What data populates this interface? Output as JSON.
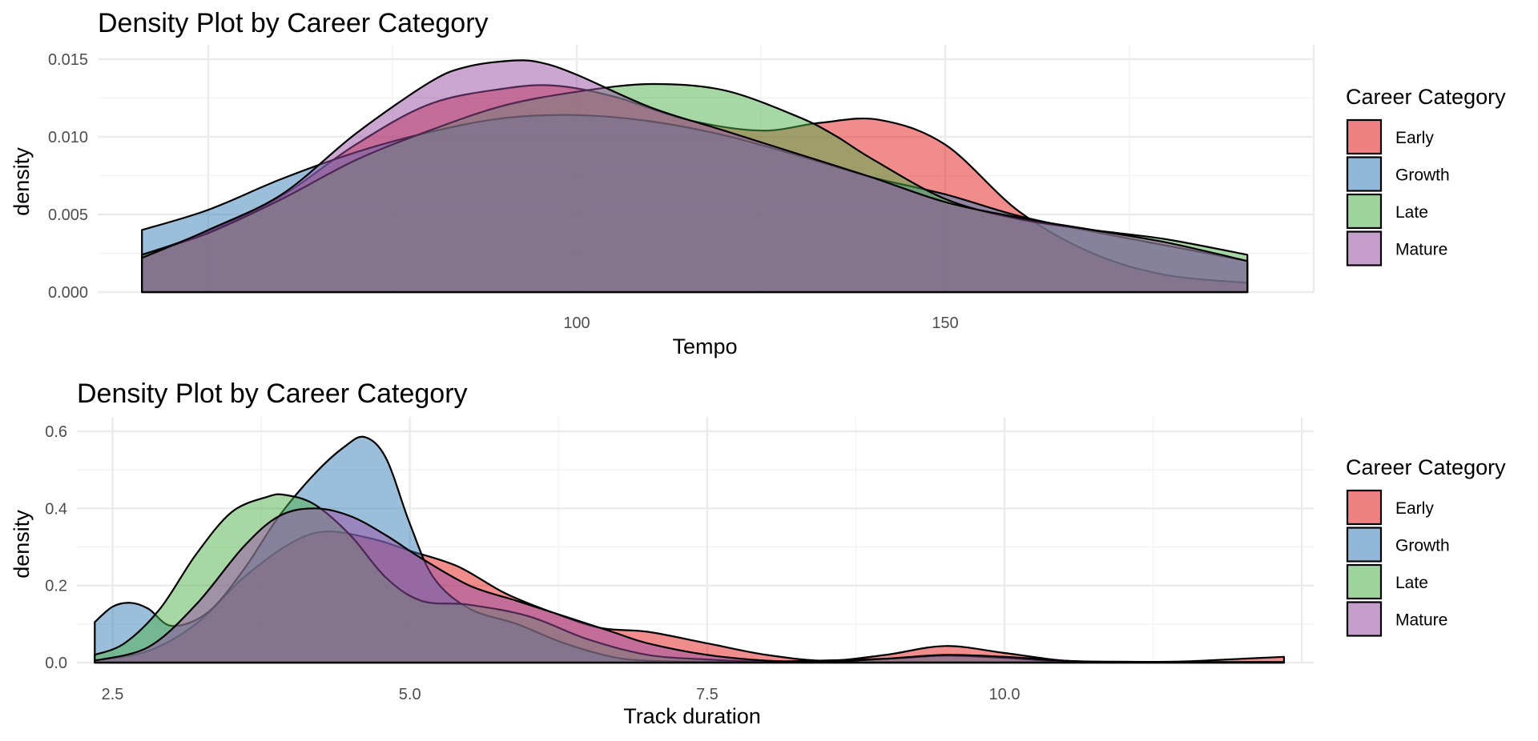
{
  "chart_data": [
    {
      "type": "area",
      "title": "Density Plot by Career Category",
      "xlabel": "Tempo",
      "ylabel": "density",
      "xlim": [
        35,
        200
      ],
      "ylim": [
        0,
        0.015
      ],
      "x_ticks": [
        100,
        150
      ],
      "x_tick_labels": [
        "100",
        "150"
      ],
      "y_ticks": [
        0,
        0.005,
        0.01,
        0.015
      ],
      "y_tick_labels": [
        "0.000",
        "0.005",
        "0.010",
        "0.015"
      ],
      "grid": true,
      "legend": {
        "title": "Career Category",
        "position": "right"
      },
      "series": [
        {
          "name": "Early",
          "color": "#E41A1C",
          "x": [
            41,
            50,
            60,
            70,
            80,
            90,
            97,
            105,
            115,
            125,
            133,
            141,
            150,
            160,
            170,
            180,
            191
          ],
          "y": [
            0.0024,
            0.0039,
            0.0062,
            0.0095,
            0.0121,
            0.0131,
            0.0133,
            0.0126,
            0.0111,
            0.0104,
            0.0109,
            0.0111,
            0.0095,
            0.0052,
            0.0025,
            0.0011,
            0.0006
          ]
        },
        {
          "name": "Growth",
          "color": "#377EB8",
          "x": [
            41,
            50,
            60,
            70,
            80,
            90,
            100,
            110,
            120,
            130,
            140,
            150,
            160,
            170,
            180,
            191
          ],
          "y": [
            0.004,
            0.0053,
            0.0073,
            0.009,
            0.0103,
            0.0112,
            0.0114,
            0.011,
            0.0101,
            0.0088,
            0.0074,
            0.0063,
            0.0049,
            0.0039,
            0.003,
            0.002
          ]
        },
        {
          "name": "Late",
          "color": "#4DAF4A",
          "x": [
            41,
            50,
            60,
            70,
            80,
            90,
            100,
            110,
            120,
            130,
            135,
            140,
            150,
            160,
            170,
            180,
            191
          ],
          "y": [
            0.0024,
            0.0038,
            0.006,
            0.0085,
            0.0104,
            0.012,
            0.0129,
            0.0134,
            0.013,
            0.0113,
            0.0101,
            0.0086,
            0.006,
            0.0047,
            0.004,
            0.0034,
            0.0024
          ]
        },
        {
          "name": "Mature",
          "color": "#984EA3",
          "x": [
            41,
            50,
            60,
            70,
            80,
            85,
            91,
            95,
            100,
            110,
            120,
            130,
            140,
            150,
            160,
            170,
            180,
            191
          ],
          "y": [
            0.0022,
            0.004,
            0.0063,
            0.0102,
            0.0135,
            0.0145,
            0.0149,
            0.0148,
            0.014,
            0.0119,
            0.0104,
            0.0089,
            0.0074,
            0.0058,
            0.0048,
            0.004,
            0.0032,
            0.002
          ]
        }
      ]
    },
    {
      "type": "area",
      "title": "Density Plot by Career Category",
      "xlabel": "Track duration",
      "ylabel": "density",
      "xlim": [
        2.2,
        12.6
      ],
      "ylim": [
        0,
        0.6
      ],
      "x_ticks": [
        2.5,
        5.0,
        7.5,
        10.0
      ],
      "x_tick_labels": [
        "2.5",
        "5.0",
        "7.5",
        "10.0"
      ],
      "y_ticks": [
        0,
        0.2,
        0.4,
        0.6
      ],
      "y_tick_labels": [
        "0.0",
        "0.2",
        "0.4",
        "0.6"
      ],
      "grid": true,
      "legend": {
        "title": "Career Category",
        "position": "right"
      },
      "series": [
        {
          "name": "Early",
          "color": "#E41A1C",
          "x": [
            2.35,
            2.8,
            3.2,
            3.6,
            4.0,
            4.3,
            4.7,
            5.0,
            5.4,
            5.8,
            6.2,
            6.6,
            7.0,
            7.5,
            8.0,
            8.5,
            9.0,
            9.5,
            10.0,
            10.5,
            11.0,
            11.5,
            12.0,
            12.35
          ],
          "y": [
            0.005,
            0.03,
            0.1,
            0.22,
            0.31,
            0.34,
            0.32,
            0.29,
            0.25,
            0.18,
            0.13,
            0.09,
            0.08,
            0.05,
            0.02,
            0.005,
            0.02,
            0.043,
            0.025,
            0.005,
            0.002,
            0.003,
            0.01,
            0.015
          ]
        },
        {
          "name": "Growth",
          "color": "#377EB8",
          "x": [
            2.35,
            2.5,
            2.65,
            2.8,
            3.0,
            3.3,
            3.6,
            3.9,
            4.2,
            4.45,
            4.62,
            4.8,
            5.0,
            5.2,
            5.5,
            5.9,
            6.3,
            6.7,
            7.0,
            7.5,
            8.0,
            9.0,
            10.0,
            11.0,
            12.35
          ],
          "y": [
            0.105,
            0.145,
            0.155,
            0.14,
            0.095,
            0.13,
            0.24,
            0.38,
            0.49,
            0.56,
            0.585,
            0.53,
            0.36,
            0.22,
            0.14,
            0.1,
            0.05,
            0.015,
            0.005,
            0.002,
            0.001,
            0.001,
            0.001,
            0.001,
            0.001
          ]
        },
        {
          "name": "Late",
          "color": "#4DAF4A",
          "x": [
            2.35,
            2.6,
            2.9,
            3.2,
            3.5,
            3.8,
            3.95,
            4.2,
            4.5,
            4.8,
            5.1,
            5.5,
            6.0,
            6.5,
            7.0,
            7.5,
            8.0,
            9.0,
            9.5,
            10.0,
            10.5,
            11.0,
            12.35
          ],
          "y": [
            0.02,
            0.05,
            0.14,
            0.28,
            0.39,
            0.43,
            0.435,
            0.41,
            0.33,
            0.22,
            0.16,
            0.15,
            0.12,
            0.06,
            0.02,
            0.008,
            0.003,
            0.01,
            0.018,
            0.012,
            0.003,
            0.001,
            0.001
          ]
        },
        {
          "name": "Mature",
          "color": "#984EA3",
          "x": [
            2.35,
            2.8,
            3.2,
            3.6,
            3.9,
            4.2,
            4.5,
            4.8,
            5.1,
            5.5,
            5.9,
            6.3,
            6.7,
            7.0,
            7.5,
            8.0,
            8.5,
            9.0,
            9.5,
            10.0,
            10.5,
            11.0,
            12.35
          ],
          "y": [
            0.005,
            0.04,
            0.15,
            0.3,
            0.38,
            0.4,
            0.38,
            0.33,
            0.27,
            0.2,
            0.16,
            0.12,
            0.08,
            0.05,
            0.02,
            0.005,
            0.002,
            0.01,
            0.02,
            0.015,
            0.005,
            0.002,
            0.001
          ]
        }
      ]
    }
  ]
}
